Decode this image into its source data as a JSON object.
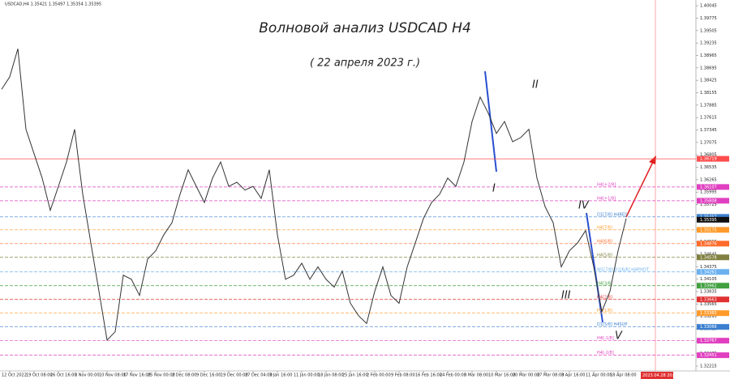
{
  "chart_data": {
    "type": "line",
    "symbol_info": "USDCAD,H4  1.35421 1.35497 1.35354 1.35395",
    "title": "Волновой анализ USDCAD H4",
    "subtitle": "( 22 апреля 2023 г.)",
    "color": "#333333",
    "categories": [
      null,
      "12 Oct 2022",
      null,
      null,
      "19 Oct 08:00",
      null,
      null,
      "26 Oct 16:00",
      null,
      null,
      "3 Nov 00:00",
      null,
      null,
      "10 Nov 08:00",
      null,
      null,
      "17 Nov 16:00",
      null,
      null,
      "25 Nov 00:00",
      null,
      null,
      "2 Dec 08:00",
      null,
      null,
      "9 Dec 16:00",
      null,
      null,
      "19 Dec 00:00",
      null,
      null,
      "27 Dec 04:00",
      null,
      null,
      "3 Jan 16:00",
      null,
      null,
      "11 Jan 00:00",
      null,
      null,
      "18 Jan 08:00",
      null,
      null,
      "25 Jan 16:00",
      null,
      null,
      "2 Feb 00:00",
      null,
      null,
      "9 Feb 08:00",
      null,
      null,
      "16 Feb 16:00",
      null,
      null,
      "24 Feb 00:00",
      null,
      null,
      "3 Mar 08:00",
      null,
      null,
      "10 Mar 16:00",
      null,
      null,
      "20 Mar 00:00",
      null,
      null,
      "27 Mar 08:00",
      null,
      null,
      "3 Apr 16:00",
      null,
      null,
      "11 Apr 00:00",
      null,
      null,
      "18 Apr 08:00",
      null
    ],
    "values": [
      1.3823,
      1.385,
      1.3911,
      1.3736,
      1.3683,
      1.363,
      1.356,
      1.3612,
      1.3665,
      1.3736,
      1.3595,
      1.3489,
      1.3384,
      1.3278,
      1.3296,
      1.3419,
      1.341,
      1.3375,
      1.3454,
      1.3472,
      1.3507,
      1.3533,
      1.3595,
      1.3648,
      1.3612,
      1.3577,
      1.363,
      1.3665,
      1.3612,
      1.3621,
      1.3604,
      1.3612,
      1.3586,
      1.3648,
      1.3507,
      1.341,
      1.3419,
      1.3445,
      1.341,
      1.3437,
      1.341,
      1.3393,
      1.3428,
      1.3358,
      1.3331,
      1.3314,
      1.3384,
      1.3437,
      1.3375,
      1.3358,
      1.3437,
      1.3489,
      1.3542,
      1.3577,
      1.3595,
      1.363,
      1.3612,
      1.3665,
      1.3753,
      1.3806,
      1.3771,
      1.3727,
      1.3753,
      1.3709,
      1.3718,
      1.3736,
      1.363,
      1.3568,
      1.3533,
      1.3437,
      1.3472,
      1.3489,
      1.3516,
      1.3437,
      1.334,
      1.3384,
      1.3472,
      1.3542
    ],
    "future_time": "2023.04.28 20:00",
    "ylim": [
      1.3211,
      1.4017
    ],
    "yticks": [
      {
        "value": 1.40045,
        "label": "1.40045"
      },
      {
        "value": 1.39775,
        "label": "1.39775"
      },
      {
        "value": 1.39505,
        "label": "1.39505"
      },
      {
        "value": 1.39235,
        "label": "1.39235"
      },
      {
        "value": 1.38965,
        "label": "1.38965"
      },
      {
        "value": 1.38695,
        "label": "1.38695"
      },
      {
        "value": 1.38425,
        "label": "1.38425"
      },
      {
        "value": 1.38155,
        "label": "1.38155"
      },
      {
        "value": 1.37885,
        "label": "1.37885"
      },
      {
        "value": 1.37615,
        "label": "1.37615"
      },
      {
        "value": 1.37345,
        "label": "1.37345"
      },
      {
        "value": 1.37075,
        "label": "1.37075"
      },
      {
        "value": 1.36805,
        "label": "1.36805"
      },
      {
        "value": 1.36535,
        "label": "1.36535"
      },
      {
        "value": 1.36265,
        "label": "1.36265"
      },
      {
        "value": 1.35995,
        "label": "1.35995"
      },
      {
        "value": 1.35725,
        "label": "1.35725"
      },
      {
        "value": 1.35455,
        "label": "1.35455"
      },
      {
        "value": 1.35185,
        "label": "1.35185"
      },
      {
        "value": 1.34915,
        "label": "1.34915"
      },
      {
        "value": 1.34645,
        "label": "1.34645"
      },
      {
        "value": 1.34375,
        "label": "1.34375"
      },
      {
        "value": 1.34105,
        "label": "1.34105"
      },
      {
        "value": 1.33835,
        "label": "1.33835"
      },
      {
        "value": 1.33565,
        "label": "1.33565"
      },
      {
        "value": 1.33295,
        "label": "1.33295"
      },
      {
        "value": 1.33025,
        "label": "1.33025"
      },
      {
        "value": 1.32755,
        "label": "1.32755"
      },
      {
        "value": 1.32485,
        "label": "1.32485"
      },
      {
        "value": 1.32215,
        "label": "1.32215"
      }
    ],
    "current_price": 1.35395,
    "levels": [
      {
        "value": 1.36719,
        "color": "#ff4d4d"
      },
      {
        "name": "H4[+2/8]",
        "value": 1.36107,
        "color": "#e040c0"
      },
      {
        "name": "H4[+1/8]",
        "value": 1.35808,
        "color": "#e040c0"
      },
      {
        "name": "D1[7/8] H4RES",
        "value": 1.35457,
        "color": "#3a7fd0"
      },
      {
        "name": "H4[7/8]",
        "value": 1.35175,
        "color": "#ff9a2a"
      },
      {
        "name": "H4[6/8]",
        "value": 1.34876,
        "color": "#ff6a2a"
      },
      {
        "name": "H4[5/8]",
        "value": 1.34578,
        "color": "#808040"
      },
      {
        "name": "W1[7/8] D1[6/8] H4PIVOT",
        "value": 1.34261,
        "color": "#6ab0f0"
      },
      {
        "name": "H4[3/8]",
        "value": 1.33962,
        "color": "#40a040"
      },
      {
        "name": "H4[2/8]",
        "value": 1.33663,
        "color": "#e03030"
      },
      {
        "name": "H4[1/8]",
        "value": 1.33365,
        "color": "#ff9a2a"
      },
      {
        "name": "D1[5/8] H4SUP",
        "value": 1.33066,
        "color": "#3a7fd0"
      },
      {
        "name": "H4[-1/8]",
        "value": 1.32767,
        "color": "#e040c0"
      },
      {
        "name": "H4[-2/8]",
        "value": 1.32451,
        "color": "#e040c0"
      }
    ],
    "wave_labels": [
      "II",
      "I",
      "IV",
      "III",
      "V"
    ]
  }
}
